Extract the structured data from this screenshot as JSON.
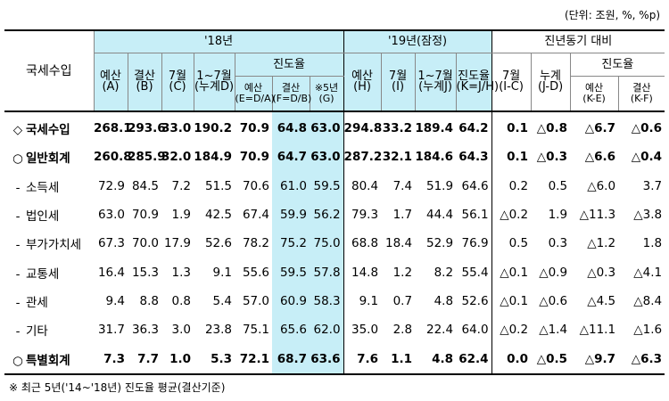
{
  "unit_note": "(단위: 조원, %, %p)",
  "header": {
    "row_label": "국세수입",
    "year18": "'18년",
    "year19": "'19년(잠정)",
    "yoy": "진년동기 대비",
    "progress": "진도율",
    "cols18": [
      {
        "l1": "예산",
        "l2": "(A)"
      },
      {
        "l1": "결산",
        "l2": "(B)"
      },
      {
        "l1": "7월",
        "l2": "(C)"
      },
      {
        "l1": "1~7월",
        "l2": "(누계D)"
      }
    ],
    "prog18": [
      {
        "l1": "예산",
        "l2": "(E=D/A)"
      },
      {
        "l1": "결산",
        "l2": "(F=D/B)"
      },
      {
        "l1": "※5년",
        "l2": "(G)"
      }
    ],
    "cols19": [
      {
        "l1": "예산",
        "l2": "(H)"
      },
      {
        "l1": "7월",
        "l2": "(I)"
      },
      {
        "l1": "1~7월",
        "l2": "(누계J)"
      },
      {
        "l1": "진도율",
        "l2": "(K=J/H)"
      }
    ],
    "yoycols": [
      {
        "l1": "7월",
        "l2": "(I-C)"
      },
      {
        "l1": "누계",
        "l2": "(J-D)"
      }
    ],
    "yoyprog": [
      {
        "l1": "예산",
        "l2": "(K-E)"
      },
      {
        "l1": "결산",
        "l2": "(K-F)"
      }
    ]
  },
  "rows": [
    {
      "mark": "◇",
      "label": "국세수입",
      "vals": [
        "268.1",
        "293.6",
        "33.0",
        "190.2",
        "70.9",
        "64.8",
        "63.0",
        "294.8",
        "33.2",
        "189.4",
        "64.2",
        "0.1",
        "△0.8",
        "△6.7",
        "△0.6"
      ]
    },
    {
      "mark": "○",
      "label": "일반회계",
      "vals": [
        "260.8",
        "285.9",
        "32.0",
        "184.9",
        "70.9",
        "64.7",
        "63.0",
        "287.2",
        "32.1",
        "184.6",
        "64.3",
        "0.1",
        "△0.3",
        "△6.6",
        "△0.4"
      ]
    },
    {
      "mark": "-",
      "label": "소득세",
      "vals": [
        "72.9",
        "84.5",
        "7.2",
        "51.5",
        "70.6",
        "61.0",
        "59.5",
        "80.4",
        "7.4",
        "51.9",
        "64.6",
        "0.2",
        "0.5",
        "△6.0",
        "3.7"
      ]
    },
    {
      "mark": "-",
      "label": "법인세",
      "vals": [
        "63.0",
        "70.9",
        "1.9",
        "42.5",
        "67.4",
        "59.9",
        "56.2",
        "79.3",
        "1.7",
        "44.4",
        "56.1",
        "△0.2",
        "1.9",
        "△11.3",
        "△3.8"
      ]
    },
    {
      "mark": "-",
      "label": "부가가치세",
      "vals": [
        "67.3",
        "70.0",
        "17.9",
        "52.6",
        "78.2",
        "75.2",
        "75.0",
        "68.8",
        "18.4",
        "52.9",
        "76.9",
        "0.5",
        "0.3",
        "△1.2",
        "1.8"
      ]
    },
    {
      "mark": "-",
      "label": "교통세",
      "vals": [
        "16.4",
        "15.3",
        "1.3",
        "9.1",
        "55.6",
        "59.5",
        "57.8",
        "14.8",
        "1.2",
        "8.2",
        "55.4",
        "△0.1",
        "△0.9",
        "△0.3",
        "△4.1"
      ]
    },
    {
      "mark": "-",
      "label": "관세",
      "vals": [
        "9.4",
        "8.8",
        "0.8",
        "5.4",
        "57.0",
        "60.9",
        "58.3",
        "9.1",
        "0.7",
        "4.8",
        "52.6",
        "△0.1",
        "△0.6",
        "△4.5",
        "△8.4"
      ]
    },
    {
      "mark": "-",
      "label": "기타",
      "vals": [
        "31.7",
        "36.3",
        "3.0",
        "23.8",
        "75.1",
        "65.6",
        "62.0",
        "35.0",
        "2.8",
        "22.4",
        "64.0",
        "△0.2",
        "△1.4",
        "△11.1",
        "△1.6"
      ]
    },
    {
      "mark": "○",
      "label": "특별회계",
      "vals": [
        "7.3",
        "7.7",
        "1.0",
        "5.3",
        "72.1",
        "68.7",
        "63.6",
        "7.6",
        "1.1",
        "4.8",
        "62.4",
        "0.0",
        "△0.5",
        "△9.7",
        "△6.3"
      ]
    }
  ],
  "footnote": "※ 최근 5년('14~'18년) 진도율 평균(결산기준)"
}
